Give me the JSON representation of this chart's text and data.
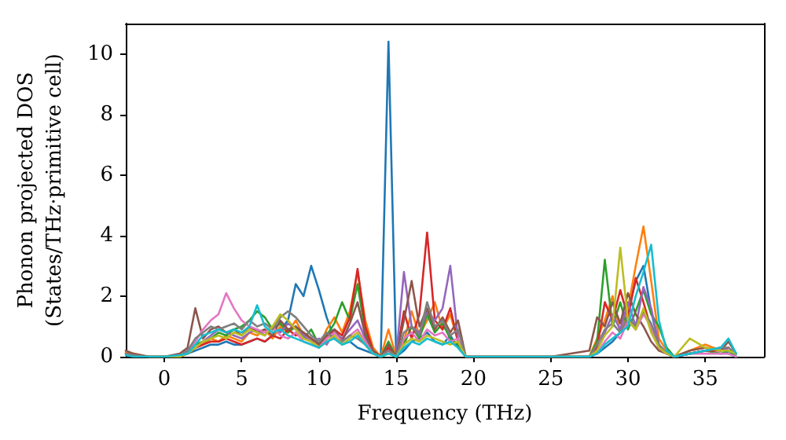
{
  "chart_data": {
    "type": "line",
    "xlabel": "Frequency (THz)",
    "ylabel": "Phonon projected DOS\n(States/THz·primitive cell)",
    "x": [
      -2.5,
      -2,
      -1,
      0,
      1,
      1.5,
      2,
      2.5,
      3,
      3.5,
      4,
      4.5,
      5,
      5.5,
      6,
      6.5,
      7,
      7.5,
      8,
      8.5,
      9,
      9.5,
      10,
      10.5,
      11,
      11.5,
      12,
      12.5,
      13,
      13.5,
      14,
      14.5,
      15,
      15.5,
      16,
      16.5,
      17,
      17.5,
      18,
      18.5,
      19,
      19.5,
      20,
      22,
      25,
      27.5,
      28,
      28.5,
      29,
      29.5,
      30,
      30.5,
      31,
      31.5,
      32,
      32.5,
      33,
      34,
      35,
      36,
      36.5,
      37
    ],
    "xlim": [
      -2.5,
      38.8
    ],
    "xticks": [
      0,
      5,
      10,
      15,
      20,
      25,
      30,
      35
    ],
    "ylim": [
      0,
      11
    ],
    "yticks": [
      0,
      2,
      4,
      6,
      8,
      10
    ],
    "marker": "none",
    "line_style": "solid",
    "series": [
      {
        "color": "#1f77b4",
        "values": [
          null,
          null,
          0,
          0,
          0.05,
          0.1,
          0.2,
          0.3,
          0.4,
          0.4,
          0.5,
          0.4,
          0.4,
          0.5,
          0.6,
          0.5,
          0.7,
          0.9,
          1.2,
          2.4,
          2.0,
          3.0,
          2.2,
          1.3,
          0.6,
          0.4,
          0.5,
          0.3,
          0.2,
          0.1,
          0,
          10.4,
          0,
          0.2,
          0.5,
          0.6,
          0.8,
          0.5,
          0.4,
          0.7,
          0.3,
          0,
          0,
          0,
          0,
          0,
          0.1,
          0.3,
          0.5,
          0.8,
          1.5,
          2.5,
          3.0,
          1.5,
          0.4,
          0.1,
          0,
          0.1,
          0.2,
          0.3,
          0.1,
          0
        ]
      },
      {
        "color": "#ff7f0e",
        "values": [
          0.15,
          0.1,
          0,
          0,
          0.05,
          0.2,
          0.3,
          0.4,
          0.6,
          0.5,
          0.7,
          0.6,
          0.5,
          0.8,
          0.7,
          0.9,
          0.6,
          1.0,
          0.8,
          1.2,
          0.7,
          0.5,
          0.3,
          0.9,
          1.3,
          0.8,
          1.5,
          2.8,
          1.2,
          0.3,
          0,
          0.9,
          0,
          0.5,
          1.5,
          0.7,
          1.2,
          1.8,
          0.9,
          1.4,
          0.5,
          0,
          0,
          0,
          0,
          0,
          0.6,
          1.2,
          2.0,
          0.8,
          1.6,
          3.0,
          4.3,
          2.5,
          0.6,
          0.2,
          0,
          0.2,
          0.4,
          0.2,
          0.3,
          null
        ]
      },
      {
        "color": "#2ca02c",
        "values": [
          null,
          null,
          0,
          0,
          0,
          0.2,
          0.4,
          0.5,
          0.6,
          0.8,
          0.7,
          0.9,
          1.0,
          1.2,
          1.5,
          1.3,
          0.9,
          1.1,
          0.8,
          1.0,
          0.6,
          0.9,
          0.4,
          0.7,
          1.1,
          1.8,
          1.2,
          2.4,
          0.8,
          0.2,
          0,
          0.5,
          0,
          0.4,
          1.0,
          0.6,
          1.4,
          0.8,
          1.1,
          0.6,
          0.4,
          0,
          0,
          0,
          0,
          0,
          0.5,
          3.2,
          1.0,
          1.8,
          0.9,
          1.5,
          2.2,
          1.4,
          1.0,
          0.3,
          0,
          0.1,
          0.2,
          0.1,
          0.2,
          0
        ]
      },
      {
        "color": "#d62728",
        "values": [
          0.1,
          0.05,
          0,
          0,
          0,
          0.1,
          0.3,
          0.4,
          0.5,
          0.5,
          0.6,
          0.5,
          0.4,
          0.5,
          0.6,
          0.5,
          0.7,
          0.6,
          0.9,
          0.7,
          0.8,
          0.6,
          0.4,
          0.6,
          0.9,
          0.7,
          1.3,
          2.9,
          1.0,
          0.2,
          0,
          0.3,
          0,
          1.5,
          0.6,
          1.4,
          4.1,
          1.2,
          0.9,
          1.6,
          0.5,
          0,
          0,
          0,
          0,
          0,
          0.3,
          1.8,
          1.2,
          2.2,
          1.3,
          2.6,
          1.8,
          0.9,
          0.3,
          0.1,
          0,
          0.1,
          0.2,
          0.2,
          0.3,
          null
        ]
      },
      {
        "color": "#9467bd",
        "values": [
          null,
          null,
          null,
          null,
          0.05,
          0.2,
          0.3,
          0.5,
          0.7,
          0.9,
          0.8,
          0.7,
          0.6,
          0.8,
          0.9,
          0.7,
          1.0,
          0.8,
          1.1,
          0.9,
          0.7,
          0.5,
          0.6,
          0.4,
          0.8,
          0.6,
          0.9,
          1.2,
          0.6,
          0.2,
          0,
          0.2,
          0,
          2.8,
          1.0,
          0.8,
          1.5,
          1.2,
          1.6,
          3.0,
          0.6,
          0,
          0,
          0,
          0,
          0,
          0.2,
          0.8,
          1.4,
          0.9,
          1.8,
          1.0,
          2.3,
          1.6,
          0.4,
          0.1,
          0,
          0.1,
          0.2,
          0.3,
          0.2,
          0.1
        ]
      },
      {
        "color": "#8c564b",
        "values": [
          0.2,
          0.1,
          0,
          0,
          0.1,
          0.3,
          1.6,
          0.6,
          0.9,
          1.0,
          0.8,
          0.9,
          0.7,
          1.0,
          0.8,
          0.9,
          0.7,
          1.2,
          0.9,
          1.0,
          0.8,
          0.6,
          0.4,
          0.7,
          0.9,
          0.5,
          1.1,
          1.8,
          0.7,
          0.2,
          0,
          0.4,
          0,
          1.2,
          2.5,
          1.0,
          1.6,
          0.9,
          1.3,
          0.8,
          1.2,
          0,
          0,
          0,
          0,
          0.2,
          1.3,
          1.0,
          1.8,
          1.1,
          2.1,
          1.4,
          1.0,
          0.5,
          0.2,
          0.1,
          0,
          0.2,
          0.3,
          0.2,
          0.5,
          0.1
        ]
      },
      {
        "color": "#e377c2",
        "values": [
          null,
          null,
          null,
          null,
          0.05,
          0.2,
          0.5,
          0.9,
          1.2,
          1.4,
          2.1,
          1.6,
          1.2,
          1.0,
          0.9,
          0.8,
          1.0,
          0.7,
          0.6,
          0.8,
          0.5,
          0.4,
          0.3,
          0.6,
          0.8,
          0.5,
          0.7,
          0.9,
          0.5,
          0.1,
          0,
          0.2,
          0,
          0.6,
          0.8,
          0.5,
          0.9,
          0.7,
          0.8,
          0.5,
          0.6,
          0,
          0,
          0,
          0,
          0,
          0.1,
          0.5,
          0.8,
          0.6,
          1.2,
          0.9,
          1.4,
          1.0,
          0.3,
          0.1,
          0,
          0.1,
          0.1,
          0.1,
          0.1,
          0
        ]
      },
      {
        "color": "#7f7f7f",
        "values": [
          0.1,
          0.05,
          0,
          0,
          0.05,
          0.2,
          0.6,
          0.8,
          1.0,
          0.9,
          1.0,
          1.1,
          0.9,
          1.2,
          1.0,
          1.1,
          0.9,
          1.3,
          1.5,
          1.3,
          1.0,
          0.7,
          0.5,
          0.8,
          0.6,
          0.5,
          0.7,
          0.6,
          0.4,
          0.1,
          0,
          0.2,
          0,
          0.8,
          1.0,
          0.7,
          1.8,
          1.0,
          1.2,
          0.7,
          0.9,
          0,
          0,
          0,
          0,
          0,
          0.4,
          0.9,
          1.1,
          0.8,
          1.3,
          1.0,
          1.5,
          1.1,
          0.4,
          0.1,
          0,
          0.1,
          0.2,
          0.3,
          0.3,
          0.1
        ]
      },
      {
        "color": "#bcbd22",
        "values": [
          null,
          null,
          0,
          0,
          0,
          0.1,
          0.3,
          0.5,
          0.6,
          0.7,
          0.6,
          0.8,
          0.7,
          0.9,
          0.8,
          0.7,
          1.0,
          1.4,
          1.2,
          0.9,
          0.6,
          0.5,
          0.3,
          0.5,
          0.7,
          0.4,
          0.6,
          0.8,
          0.4,
          0.1,
          0,
          0.1,
          0,
          0.4,
          0.6,
          0.5,
          0.7,
          0.6,
          0.5,
          0.4,
          0.5,
          0,
          0,
          0,
          0,
          0,
          0.2,
          0.7,
          1.0,
          3.6,
          1.2,
          0.9,
          1.6,
          0.8,
          0.3,
          0.1,
          0,
          0.6,
          0.3,
          0.2,
          0.2,
          0.1
        ]
      },
      {
        "color": "#17becf",
        "values": [
          0.05,
          0,
          0,
          0,
          0.05,
          0.1,
          0.4,
          0.7,
          0.8,
          0.9,
          0.8,
          0.9,
          0.8,
          1.0,
          1.7,
          1.0,
          0.8,
          0.9,
          0.7,
          0.6,
          0.5,
          0.4,
          0.3,
          0.5,
          0.6,
          0.4,
          0.5,
          0.7,
          0.4,
          0.1,
          0,
          0.1,
          0,
          0.3,
          0.5,
          0.4,
          0.6,
          0.5,
          0.4,
          0.5,
          0.3,
          0,
          0,
          0,
          0,
          0,
          0.1,
          0.4,
          0.6,
          0.8,
          1.0,
          2.0,
          2.8,
          3.7,
          1.2,
          0.2,
          0,
          0.1,
          0.2,
          0.3,
          0.6,
          0.1
        ]
      }
    ]
  }
}
